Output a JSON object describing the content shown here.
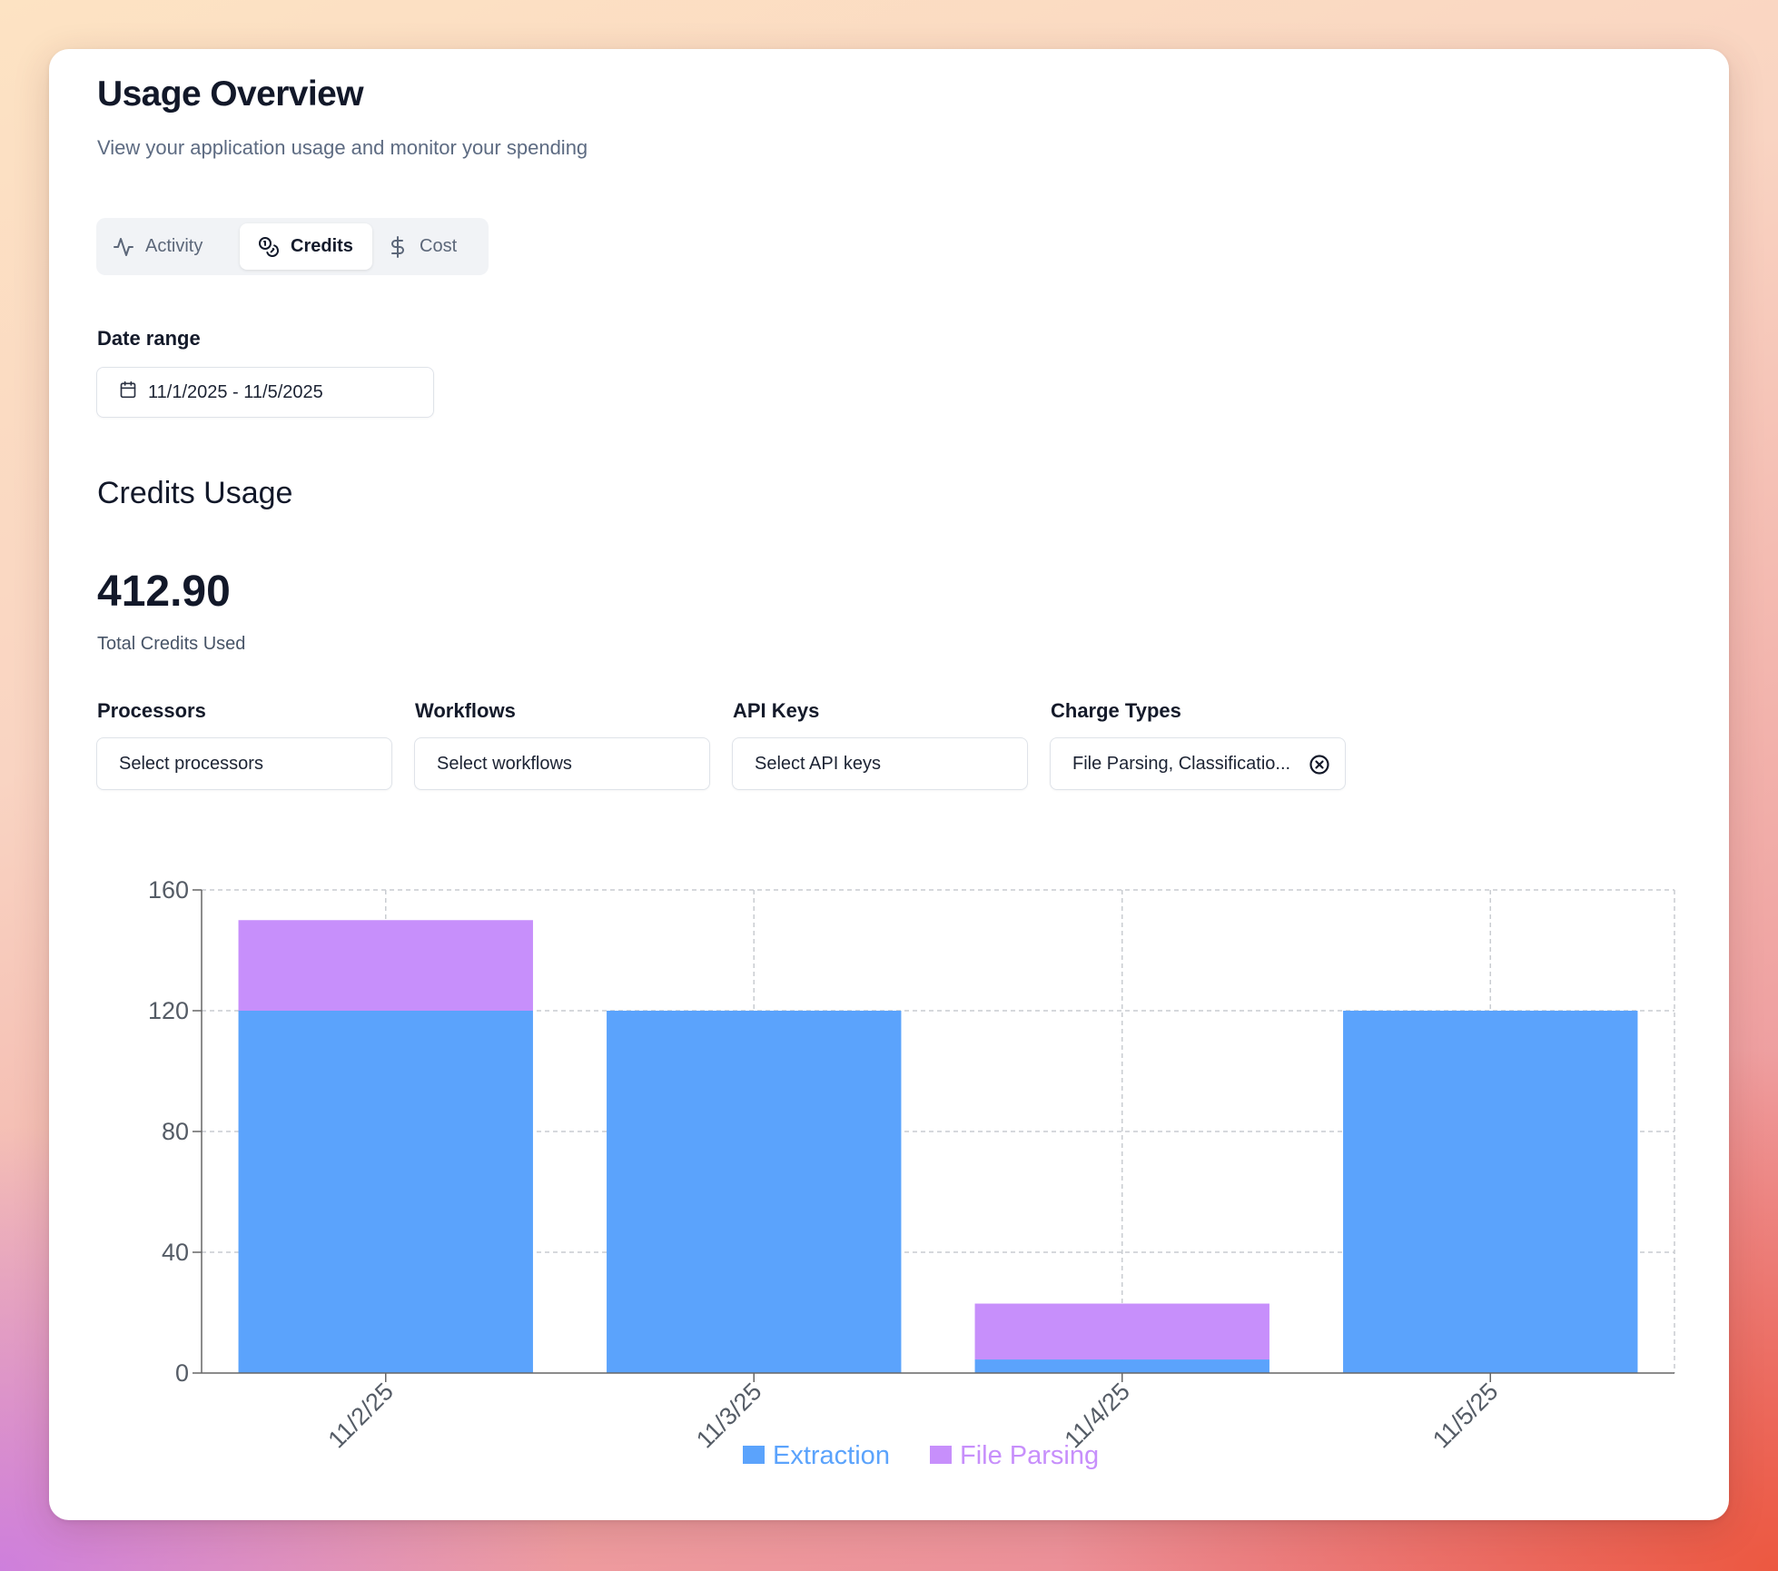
{
  "header": {
    "title": "Usage Overview",
    "subtitle": "View your application usage and monitor your spending"
  },
  "tabs": [
    {
      "label": "Activity",
      "icon": "activity-icon",
      "active": false
    },
    {
      "label": "Credits",
      "icon": "coins-icon",
      "active": true
    },
    {
      "label": "Cost",
      "icon": "dollar-icon",
      "active": false
    }
  ],
  "date_range": {
    "label": "Date range",
    "value": "11/1/2025 - 11/5/2025",
    "icon": "calendar-icon"
  },
  "section": {
    "title": "Credits Usage",
    "total_value": "412.90",
    "total_caption": "Total Credits Used"
  },
  "filters": [
    {
      "label": "Processors",
      "value": "Select processors"
    },
    {
      "label": "Workflows",
      "value": "Select workflows"
    },
    {
      "label": "API Keys",
      "value": "Select API keys"
    },
    {
      "label": "Charge Types",
      "value": "File Parsing, Classificatio...",
      "clearable": true
    }
  ],
  "colors": {
    "extraction": "#5ba3fc",
    "file_parsing": "#c78ffb",
    "text_dark": "#121829",
    "muted": "#5d6b82"
  },
  "chart_data": {
    "type": "bar",
    "stacked": true,
    "categories": [
      "11/2/25",
      "11/3/25",
      "11/4/25",
      "11/5/25"
    ],
    "series": [
      {
        "name": "Extraction",
        "color": "#5ba3fc",
        "values": [
          120,
          120,
          4.5,
          120
        ]
      },
      {
        "name": "File Parsing",
        "color": "#c78ffb",
        "values": [
          30,
          0,
          18.5,
          0
        ]
      }
    ],
    "ylim": [
      0,
      160
    ],
    "yticks": [
      0,
      40,
      80,
      120,
      160
    ],
    "grid": true,
    "legend": "bottom-center"
  }
}
